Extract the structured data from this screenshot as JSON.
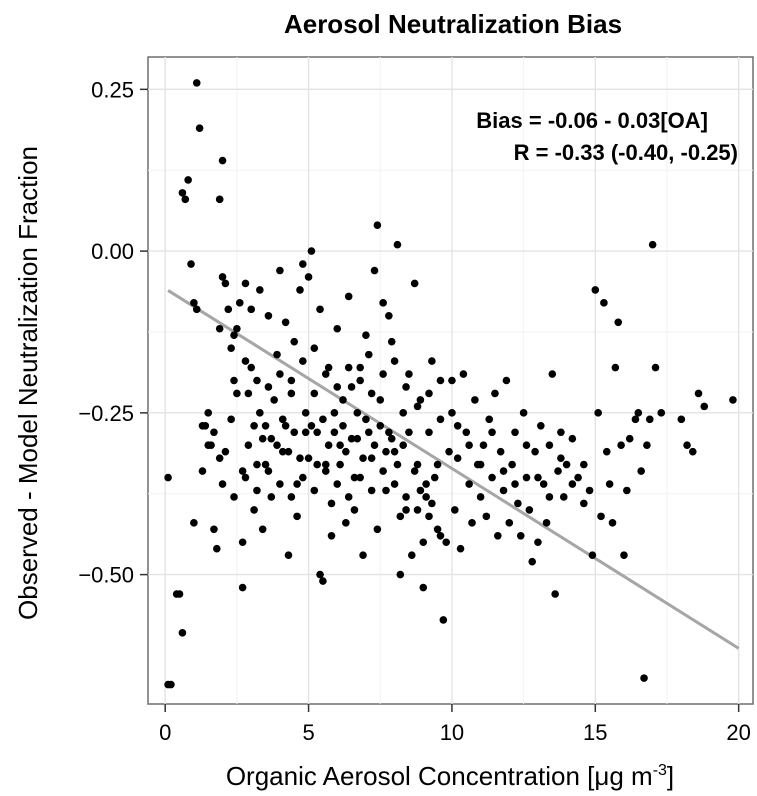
{
  "chart_data": {
    "type": "scatter",
    "title": "Aerosol Neutralization Bias",
    "xlabel": "Organic Aerosol Concentration [μg m",
    "xlabel_superscript": "-3",
    "xlabel_suffix": "]",
    "ylabel": "Observed - Model Neutralization Fraction",
    "xlim": [
      -0.6,
      20.5
    ],
    "ylim": [
      -0.7,
      0.3
    ],
    "x_ticks": [
      0,
      5,
      10,
      15,
      20
    ],
    "x_tick_labels": [
      "0",
      "5",
      "10",
      "15",
      "20"
    ],
    "y_ticks": [
      0.25,
      0,
      -0.25,
      -0.5
    ],
    "y_tick_labels": [
      "0.25",
      "0.00",
      "−0.25",
      "−0.50"
    ],
    "grid": true,
    "annotations": [
      "Bias = -0.06 - 0.03[OA]",
      "R = -0.33 (-0.40, -0.25)"
    ],
    "fit_line": {
      "intercept": -0.058,
      "slope": -0.0278,
      "x_range": [
        0.1,
        20
      ],
      "color": "#a6a6a6"
    },
    "point_color": "#000000",
    "points": [
      [
        1.1,
        0.26
      ],
      [
        1.2,
        0.19
      ],
      [
        2.0,
        0.14
      ],
      [
        0.6,
        0.09
      ],
      [
        0.7,
        0.08
      ],
      [
        0.8,
        0.11
      ],
      [
        1.9,
        0.08
      ],
      [
        0.1,
        -0.35
      ],
      [
        0.4,
        -0.53
      ],
      [
        0.5,
        -0.53
      ],
      [
        0.6,
        -0.59
      ],
      [
        0.2,
        -0.67
      ],
      [
        0.1,
        -0.67
      ],
      [
        0.9,
        -0.02
      ],
      [
        1.0,
        -0.08
      ],
      [
        1.0,
        -0.42
      ],
      [
        1.1,
        -0.09
      ],
      [
        1.3,
        -0.34
      ],
      [
        1.4,
        -0.27
      ],
      [
        1.5,
        -0.25
      ],
      [
        1.6,
        -0.3
      ],
      [
        1.7,
        -0.43
      ],
      [
        1.8,
        -0.46
      ],
      [
        1.9,
        -0.12
      ],
      [
        2.0,
        -0.04
      ],
      [
        2.1,
        -0.05
      ],
      [
        2.2,
        -0.09
      ],
      [
        2.3,
        -0.15
      ],
      [
        2.4,
        -0.2
      ],
      [
        2.5,
        -0.12
      ],
      [
        2.6,
        -0.08
      ],
      [
        2.7,
        -0.52
      ],
      [
        2.7,
        -0.45
      ],
      [
        2.8,
        -0.05
      ],
      [
        2.9,
        -0.22
      ],
      [
        3.0,
        -0.18
      ],
      [
        3.1,
        -0.4
      ],
      [
        3.2,
        -0.33
      ],
      [
        3.3,
        -0.06
      ],
      [
        3.4,
        -0.29
      ],
      [
        3.5,
        -0.27
      ],
      [
        3.6,
        -0.1
      ],
      [
        3.7,
        -0.38
      ],
      [
        3.8,
        -0.23
      ],
      [
        3.9,
        -0.16
      ],
      [
        4.0,
        -0.03
      ],
      [
        4.1,
        -0.31
      ],
      [
        4.2,
        -0.27
      ],
      [
        4.3,
        -0.47
      ],
      [
        4.4,
        -0.2
      ],
      [
        4.5,
        -0.14
      ],
      [
        4.6,
        -0.36
      ],
      [
        4.7,
        -0.06
      ],
      [
        4.8,
        -0.02
      ],
      [
        4.9,
        -0.25
      ],
      [
        5.0,
        -0.32
      ],
      [
        5.1,
        0.0
      ],
      [
        5.2,
        -0.22
      ],
      [
        5.3,
        -0.28
      ],
      [
        5.4,
        -0.5
      ],
      [
        5.5,
        -0.51
      ],
      [
        5.6,
        -0.33
      ],
      [
        5.7,
        -0.18
      ],
      [
        5.8,
        -0.39
      ],
      [
        5.9,
        -0.25
      ],
      [
        6.0,
        -0.12
      ],
      [
        6.1,
        -0.3
      ],
      [
        6.2,
        -0.27
      ],
      [
        6.3,
        -0.42
      ],
      [
        6.4,
        -0.07
      ],
      [
        6.5,
        -0.21
      ],
      [
        6.6,
        -0.35
      ],
      [
        6.7,
        -0.29
      ],
      [
        6.8,
        -0.18
      ],
      [
        6.9,
        -0.47
      ],
      [
        7.0,
        -0.26
      ],
      [
        7.1,
        -0.16
      ],
      [
        7.2,
        -0.32
      ],
      [
        7.3,
        -0.03
      ],
      [
        7.4,
        0.04
      ],
      [
        7.5,
        -0.23
      ],
      [
        7.6,
        -0.08
      ],
      [
        7.7,
        -0.37
      ],
      [
        7.8,
        -0.28
      ],
      [
        7.9,
        -0.14
      ],
      [
        8.0,
        -0.31
      ],
      [
        8.1,
        0.01
      ],
      [
        8.2,
        -0.5
      ],
      [
        8.3,
        -0.25
      ],
      [
        8.4,
        -0.4
      ],
      [
        8.5,
        -0.19
      ],
      [
        8.6,
        -0.47
      ],
      [
        8.7,
        -0.05
      ],
      [
        8.8,
        -0.33
      ],
      [
        8.9,
        -0.23
      ],
      [
        9.0,
        -0.52
      ],
      [
        9.1,
        -0.38
      ],
      [
        9.2,
        -0.28
      ],
      [
        9.3,
        -0.17
      ],
      [
        9.4,
        -0.35
      ],
      [
        9.5,
        -0.43
      ],
      [
        9.6,
        -0.26
      ],
      [
        9.7,
        -0.57
      ],
      [
        9.8,
        -0.45
      ],
      [
        9.9,
        -0.31
      ],
      [
        10.0,
        -0.2
      ],
      [
        10.1,
        -0.4
      ],
      [
        10.2,
        -0.32
      ],
      [
        10.3,
        -0.46
      ],
      [
        10.4,
        -0.19
      ],
      [
        10.5,
        -0.28
      ],
      [
        10.6,
        -0.36
      ],
      [
        10.7,
        -0.42
      ],
      [
        10.8,
        -0.23
      ],
      [
        10.9,
        -0.33
      ],
      [
        11.0,
        -0.38
      ],
      [
        11.1,
        -0.3
      ],
      [
        11.2,
        -0.41
      ],
      [
        11.3,
        -0.26
      ],
      [
        11.4,
        -0.35
      ],
      [
        11.5,
        -0.22
      ],
      [
        11.6,
        -0.44
      ],
      [
        11.7,
        -0.31
      ],
      [
        11.8,
        -0.37
      ],
      [
        11.9,
        -0.2
      ],
      [
        12.0,
        -0.42
      ],
      [
        12.1,
        -0.33
      ],
      [
        12.2,
        -0.28
      ],
      [
        12.3,
        -0.39
      ],
      [
        12.4,
        -0.44
      ],
      [
        12.5,
        -0.25
      ],
      [
        12.6,
        -0.35
      ],
      [
        12.7,
        -0.4
      ],
      [
        12.8,
        -0.48
      ],
      [
        12.9,
        -0.31
      ],
      [
        13.0,
        -0.45
      ],
      [
        13.1,
        -0.27
      ],
      [
        13.2,
        -0.36
      ],
      [
        13.3,
        -0.42
      ],
      [
        13.4,
        -0.3
      ],
      [
        13.5,
        -0.19
      ],
      [
        13.6,
        -0.53
      ],
      [
        13.7,
        -0.34
      ],
      [
        13.8,
        -0.28
      ],
      [
        13.9,
        -0.38
      ],
      [
        14.0,
        -0.33
      ],
      [
        14.2,
        -0.29
      ],
      [
        14.4,
        -0.35
      ],
      [
        14.6,
        -0.39
      ],
      [
        14.8,
        -0.37
      ],
      [
        14.9,
        -0.47
      ],
      [
        15.0,
        -0.06
      ],
      [
        15.1,
        -0.25
      ],
      [
        15.2,
        -0.41
      ],
      [
        15.3,
        -0.08
      ],
      [
        15.4,
        -0.31
      ],
      [
        15.5,
        -0.36
      ],
      [
        15.6,
        -0.42
      ],
      [
        15.7,
        -0.18
      ],
      [
        15.8,
        -0.11
      ],
      [
        15.9,
        -0.3
      ],
      [
        16.0,
        -0.47
      ],
      [
        16.1,
        -0.37
      ],
      [
        16.2,
        -0.29
      ],
      [
        16.4,
        -0.26
      ],
      [
        16.5,
        -0.25
      ],
      [
        16.6,
        -0.34
      ],
      [
        16.7,
        -0.66
      ],
      [
        16.8,
        -0.3
      ],
      [
        16.9,
        -0.26
      ],
      [
        17.0,
        0.01
      ],
      [
        17.1,
        -0.18
      ],
      [
        17.3,
        -0.25
      ],
      [
        18.0,
        -0.26
      ],
      [
        18.2,
        -0.3
      ],
      [
        18.4,
        -0.31
      ],
      [
        18.6,
        -0.22
      ],
      [
        18.8,
        -0.24
      ],
      [
        19.8,
        -0.23
      ],
      [
        1.3,
        -0.27
      ],
      [
        1.5,
        -0.3
      ],
      [
        1.7,
        -0.28
      ],
      [
        1.9,
        -0.32
      ],
      [
        2.1,
        -0.31
      ],
      [
        2.3,
        -0.26
      ],
      [
        2.5,
        -0.22
      ],
      [
        2.7,
        -0.34
      ],
      [
        2.9,
        -0.3
      ],
      [
        3.1,
        -0.27
      ],
      [
        3.3,
        -0.25
      ],
      [
        3.5,
        -0.33
      ],
      [
        3.7,
        -0.29
      ],
      [
        3.9,
        -0.3
      ],
      [
        4.1,
        -0.26
      ],
      [
        4.3,
        -0.31
      ],
      [
        4.5,
        -0.28
      ],
      [
        4.7,
        -0.32
      ],
      [
        4.9,
        -0.28
      ],
      [
        5.1,
        -0.27
      ],
      [
        5.3,
        -0.33
      ],
      [
        5.5,
        -0.26
      ],
      [
        5.7,
        -0.3
      ],
      [
        5.9,
        -0.28
      ],
      [
        6.1,
        -0.33
      ],
      [
        6.3,
        -0.31
      ],
      [
        6.5,
        -0.29
      ],
      [
        6.7,
        -0.25
      ],
      [
        6.9,
        -0.32
      ],
      [
        7.1,
        -0.28
      ],
      [
        7.3,
        -0.3
      ],
      [
        7.5,
        -0.27
      ],
      [
        7.7,
        -0.31
      ],
      [
        7.9,
        -0.29
      ],
      [
        8.1,
        -0.33
      ],
      [
        8.3,
        -0.3
      ],
      [
        8.5,
        -0.28
      ],
      [
        8.7,
        -0.34
      ],
      [
        8.9,
        -0.37
      ],
      [
        9.1,
        -0.36
      ],
      [
        9.3,
        -0.39
      ],
      [
        9.5,
        -0.33
      ],
      [
        2.4,
        -0.13
      ],
      [
        2.8,
        -0.17
      ],
      [
        3.2,
        -0.2
      ],
      [
        3.6,
        -0.21
      ],
      [
        4.0,
        -0.19
      ],
      [
        4.4,
        -0.22
      ],
      [
        4.8,
        -0.17
      ],
      [
        5.2,
        -0.15
      ],
      [
        5.6,
        -0.19
      ],
      [
        6.0,
        -0.21
      ],
      [
        6.4,
        -0.18
      ],
      [
        6.8,
        -0.2
      ],
      [
        7.2,
        -0.22
      ],
      [
        7.6,
        -0.19
      ],
      [
        8.0,
        -0.17
      ],
      [
        8.4,
        -0.21
      ],
      [
        8.8,
        -0.24
      ],
      [
        9.2,
        -0.22
      ],
      [
        9.6,
        -0.2
      ],
      [
        10.0,
        -0.25
      ],
      [
        2.0,
        -0.36
      ],
      [
        2.4,
        -0.38
      ],
      [
        2.8,
        -0.35
      ],
      [
        3.2,
        -0.37
      ],
      [
        3.6,
        -0.34
      ],
      [
        4.0,
        -0.36
      ],
      [
        4.4,
        -0.38
      ],
      [
        4.8,
        -0.35
      ],
      [
        5.2,
        -0.37
      ],
      [
        5.6,
        -0.34
      ],
      [
        6.0,
        -0.36
      ],
      [
        6.4,
        -0.38
      ],
      [
        6.8,
        -0.35
      ],
      [
        7.2,
        -0.37
      ],
      [
        7.6,
        -0.34
      ],
      [
        8.0,
        -0.36
      ],
      [
        8.4,
        -0.38
      ],
      [
        8.8,
        -0.4
      ],
      [
        9.2,
        -0.41
      ],
      [
        9.6,
        -0.44
      ],
      [
        10.2,
        -0.27
      ],
      [
        10.6,
        -0.3
      ],
      [
        11.0,
        -0.33
      ],
      [
        11.4,
        -0.28
      ],
      [
        11.8,
        -0.34
      ],
      [
        12.2,
        -0.36
      ],
      [
        12.6,
        -0.3
      ],
      [
        13.0,
        -0.35
      ],
      [
        13.4,
        -0.38
      ],
      [
        13.8,
        -0.32
      ],
      [
        14.2,
        -0.36
      ],
      [
        14.6,
        -0.33
      ],
      [
        3.0,
        -0.09
      ],
      [
        4.2,
        -0.11
      ],
      [
        5.0,
        -0.04
      ],
      [
        5.4,
        -0.09
      ],
      [
        6.2,
        -0.23
      ],
      [
        7.0,
        -0.13
      ],
      [
        7.8,
        -0.1
      ],
      [
        3.4,
        -0.43
      ],
      [
        4.6,
        -0.41
      ],
      [
        5.8,
        -0.44
      ],
      [
        6.6,
        -0.4
      ],
      [
        7.4,
        -0.43
      ],
      [
        8.2,
        -0.41
      ],
      [
        9.0,
        -0.45
      ]
    ]
  }
}
